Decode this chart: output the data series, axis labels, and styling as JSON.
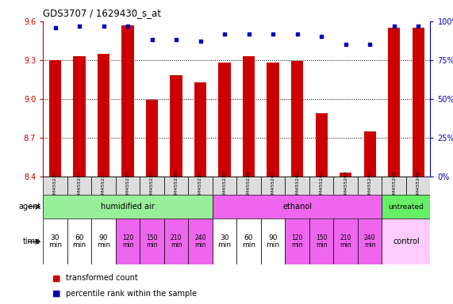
{
  "title": "GDS3707 / 1629430_s_at",
  "samples": [
    "GSM455231",
    "GSM455232",
    "GSM455233",
    "GSM455234",
    "GSM455235",
    "GSM455236",
    "GSM455237",
    "GSM455238",
    "GSM455239",
    "GSM455240",
    "GSM455241",
    "GSM455242",
    "GSM455243",
    "GSM455244",
    "GSM455245",
    "GSM455246"
  ],
  "bar_values": [
    9.3,
    9.33,
    9.35,
    9.57,
    8.99,
    9.18,
    9.13,
    9.28,
    9.33,
    9.28,
    9.29,
    8.89,
    8.43,
    8.75,
    9.55,
    9.55
  ],
  "dot_values_pct": [
    96,
    97,
    97,
    97,
    88,
    88,
    87,
    92,
    92,
    92,
    92,
    90,
    85,
    85,
    97,
    97
  ],
  "bar_color": "#cc0000",
  "dot_color": "#0000bb",
  "ylim_left": [
    8.4,
    9.6
  ],
  "ylim_right": [
    0,
    100
  ],
  "yticks_left": [
    8.4,
    8.7,
    9.0,
    9.3,
    9.6
  ],
  "yticks_right": [
    0,
    25,
    50,
    75,
    100
  ],
  "hlines": [
    9.3,
    9.0,
    8.7
  ],
  "humidified_color": "#99ee99",
  "ethanol_color": "#ee66ee",
  "untreated_color": "#66ee66",
  "control_color": "#ffccff",
  "time_white_color": "#ffffff",
  "time_pink_color": "#ee66ee",
  "sample_box_color": "#dddddd",
  "ylabel_left_color": "#cc0000",
  "ylabel_right_color": "#0000bb",
  "time_labels_14": [
    "30\nmin",
    "60\nmin",
    "90\nmin",
    "120\nmin",
    "150\nmin",
    "210\nmin",
    "240\nmin",
    "30\nmin",
    "60\nmin",
    "90\nmin",
    "120\nmin",
    "150\nmin",
    "210\nmin",
    "240\nmin"
  ],
  "white_time_idx": [
    0,
    1,
    2,
    7,
    8,
    9
  ],
  "pink_time_idx": [
    3,
    4,
    5,
    6,
    10,
    11,
    12,
    13
  ]
}
